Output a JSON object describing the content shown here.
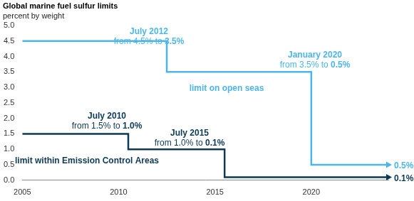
{
  "chart_data": {
    "type": "line",
    "title": "Global marine fuel sulfur limits",
    "subtitle": "percent by weight",
    "x": [
      2005,
      2010.5,
      2012.5,
      2015.5,
      2020,
      2024
    ],
    "series": [
      {
        "name": "limit on open seas",
        "color": "#4cb5ea",
        "line_style": "step",
        "marker": "none",
        "values": [
          4.5,
          null,
          3.5,
          null,
          0.5,
          0.5
        ],
        "value_labels": [
          null,
          null,
          null,
          null,
          null,
          "0.5%"
        ]
      },
      {
        "name": "limit within Emission Control Areas",
        "color": "#0c3954",
        "line_style": "step",
        "marker": "none",
        "values": [
          1.5,
          1.0,
          null,
          0.1,
          null,
          0.1
        ],
        "value_labels": [
          null,
          null,
          null,
          null,
          null,
          "0.1%"
        ]
      }
    ],
    "xlim": [
      2005,
      2024
    ],
    "xticks": [
      2005,
      2010,
      2015,
      2020
    ],
    "ylim": [
      0,
      5
    ],
    "yticks": [
      {
        "value": 0,
        "label": "0.0"
      },
      0.5,
      {
        "value": 1,
        "label": "1.0"
      },
      1.5,
      {
        "value": 2,
        "label": "2.0"
      },
      2.5,
      {
        "value": 3,
        "label": "3.0"
      },
      3.5,
      {
        "value": 4,
        "label": "4.0"
      },
      4.5,
      {
        "value": 5,
        "label": "5.0"
      }
    ],
    "grid": false,
    "annotations": [
      {
        "title": "July 2012",
        "text": "from 4.5% to 3.5%",
        "series": "limit on open seas"
      },
      {
        "title": "January 2020",
        "text": "from 3.5% to 0.5%",
        "series": "limit on open seas"
      },
      {
        "title": "July 2010",
        "text": "from 1.5% to 1.0%",
        "series": "limit within Emission Control Areas"
      },
      {
        "title": "July 2015",
        "text": "from 1.0% to 0.1%",
        "series": "limit within Emission Control Areas"
      }
    ]
  }
}
